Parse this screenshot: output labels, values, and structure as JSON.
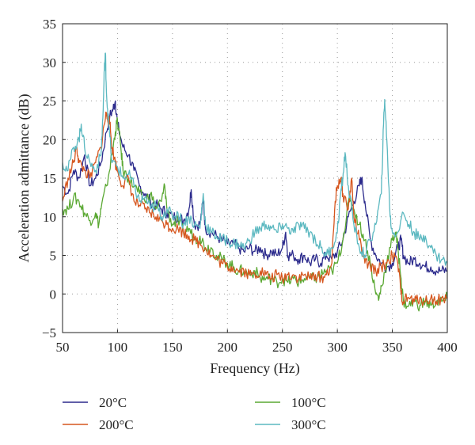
{
  "chart_data": {
    "type": "line",
    "title": "",
    "xlabel": "Frequency (Hz)",
    "ylabel": "Acceleration admittance (dB)",
    "xlim": [
      50,
      400
    ],
    "ylim": [
      -5,
      35
    ],
    "xticks": [
      50,
      100,
      150,
      200,
      250,
      300,
      350,
      400
    ],
    "yticks": [
      -5,
      0,
      5,
      10,
      15,
      20,
      25,
      30,
      35
    ],
    "xtick_labels": [
      "50",
      "100",
      "150",
      "200",
      "250",
      "300",
      "350",
      "400"
    ],
    "ytick_labels": [
      "−5",
      "0",
      "5",
      "10",
      "15",
      "20",
      "25",
      "30",
      "35"
    ],
    "grid": true,
    "legend_position": "bottom",
    "series": [
      {
        "name": "20°C",
        "color": "#2b2a8c",
        "points": [
          [
            50,
            14
          ],
          [
            55,
            13
          ],
          [
            60,
            16
          ],
          [
            65,
            15
          ],
          [
            70,
            18
          ],
          [
            75,
            14
          ],
          [
            80,
            15
          ],
          [
            85,
            17
          ],
          [
            90,
            21
          ],
          [
            93,
            23
          ],
          [
            96,
            24
          ],
          [
            98,
            25
          ],
          [
            100,
            22
          ],
          [
            105,
            19
          ],
          [
            110,
            18
          ],
          [
            115,
            16
          ],
          [
            120,
            14
          ],
          [
            125,
            13
          ],
          [
            130,
            12
          ],
          [
            135,
            11.5
          ],
          [
            140,
            11
          ],
          [
            145,
            10.5
          ],
          [
            150,
            10
          ],
          [
            155,
            10
          ],
          [
            160,
            9.5
          ],
          [
            165,
            11
          ],
          [
            167,
            13.5
          ],
          [
            170,
            9
          ],
          [
            175,
            9
          ],
          [
            178,
            12
          ],
          [
            180,
            8.5
          ],
          [
            185,
            8
          ],
          [
            190,
            7.5
          ],
          [
            195,
            7
          ],
          [
            200,
            6.5
          ],
          [
            205,
            6.5
          ],
          [
            210,
            6
          ],
          [
            215,
            5.5
          ],
          [
            220,
            6
          ],
          [
            225,
            5.5
          ],
          [
            230,
            6
          ],
          [
            235,
            5
          ],
          [
            240,
            5.5
          ],
          [
            245,
            5
          ],
          [
            250,
            6
          ],
          [
            253,
            8
          ],
          [
            255,
            5
          ],
          [
            260,
            5
          ],
          [
            265,
            4.5
          ],
          [
            270,
            5
          ],
          [
            275,
            4
          ],
          [
            280,
            4.5
          ],
          [
            285,
            4
          ],
          [
            290,
            5
          ],
          [
            295,
            4.5
          ],
          [
            300,
            5.5
          ],
          [
            305,
            7
          ],
          [
            310,
            10
          ],
          [
            315,
            12
          ],
          [
            320,
            14
          ],
          [
            322,
            15
          ],
          [
            325,
            12
          ],
          [
            330,
            7
          ],
          [
            335,
            5
          ],
          [
            340,
            4
          ],
          [
            345,
            3.5
          ],
          [
            350,
            4
          ],
          [
            355,
            6
          ],
          [
            358,
            7
          ],
          [
            360,
            5
          ],
          [
            365,
            4
          ],
          [
            370,
            4.5
          ],
          [
            375,
            4
          ],
          [
            380,
            3.5
          ],
          [
            385,
            3.5
          ],
          [
            390,
            3
          ],
          [
            395,
            3
          ],
          [
            400,
            3
          ]
        ]
      },
      {
        "name": "100°C",
        "color": "#5aa832",
        "points": [
          [
            50,
            11
          ],
          [
            55,
            11
          ],
          [
            60,
            12.5
          ],
          [
            65,
            12
          ],
          [
            70,
            10.5
          ],
          [
            75,
            9.5
          ],
          [
            80,
            10.5
          ],
          [
            83,
            9
          ],
          [
            85,
            11
          ],
          [
            90,
            14
          ],
          [
            95,
            18
          ],
          [
            98,
            21
          ],
          [
            100,
            22.5
          ],
          [
            103,
            19
          ],
          [
            105,
            16
          ],
          [
            110,
            15
          ],
          [
            115,
            14
          ],
          [
            120,
            13
          ],
          [
            125,
            12
          ],
          [
            130,
            13
          ],
          [
            135,
            11
          ],
          [
            140,
            12
          ],
          [
            143,
            14
          ],
          [
            145,
            11
          ],
          [
            150,
            9
          ],
          [
            155,
            9.5
          ],
          [
            160,
            8
          ],
          [
            165,
            8.5
          ],
          [
            170,
            7
          ],
          [
            175,
            7.5
          ],
          [
            180,
            6
          ],
          [
            185,
            6
          ],
          [
            190,
            5
          ],
          [
            195,
            4.5
          ],
          [
            200,
            4
          ],
          [
            205,
            3.5
          ],
          [
            210,
            3
          ],
          [
            215,
            3
          ],
          [
            220,
            2.5
          ],
          [
            225,
            3
          ],
          [
            230,
            2
          ],
          [
            235,
            2
          ],
          [
            240,
            2
          ],
          [
            245,
            1.5
          ],
          [
            250,
            2
          ],
          [
            255,
            1.5
          ],
          [
            260,
            2
          ],
          [
            265,
            1.5
          ],
          [
            270,
            2
          ],
          [
            275,
            2
          ],
          [
            280,
            2
          ],
          [
            285,
            2.5
          ],
          [
            290,
            3
          ],
          [
            295,
            3
          ],
          [
            300,
            4
          ],
          [
            305,
            7
          ],
          [
            310,
            12
          ],
          [
            315,
            11
          ],
          [
            320,
            9
          ],
          [
            325,
            7
          ],
          [
            330,
            4
          ],
          [
            335,
            0
          ],
          [
            338,
            -0.5
          ],
          [
            340,
            1
          ],
          [
            345,
            4
          ],
          [
            350,
            7
          ],
          [
            353,
            8
          ],
          [
            355,
            6
          ],
          [
            358,
            2
          ],
          [
            360,
            -1
          ],
          [
            365,
            -1.5
          ],
          [
            370,
            -1
          ],
          [
            375,
            -1.5
          ],
          [
            380,
            -1
          ],
          [
            385,
            -1.5
          ],
          [
            390,
            -1
          ],
          [
            395,
            -1
          ],
          [
            400,
            -0.5
          ]
        ]
      },
      {
        "name": "200°C",
        "color": "#d6561e",
        "points": [
          [
            50,
            12
          ],
          [
            55,
            15
          ],
          [
            60,
            17
          ],
          [
            63,
            19
          ],
          [
            65,
            17
          ],
          [
            70,
            16
          ],
          [
            75,
            15
          ],
          [
            80,
            17
          ],
          [
            85,
            19
          ],
          [
            88,
            22
          ],
          [
            90,
            23.5
          ],
          [
            93,
            22
          ],
          [
            95,
            19
          ],
          [
            98,
            17
          ],
          [
            100,
            16
          ],
          [
            105,
            14
          ],
          [
            110,
            15
          ],
          [
            115,
            12
          ],
          [
            120,
            11.5
          ],
          [
            125,
            11
          ],
          [
            130,
            10.5
          ],
          [
            135,
            10
          ],
          [
            140,
            9.5
          ],
          [
            145,
            9
          ],
          [
            150,
            8.5
          ],
          [
            155,
            8.5
          ],
          [
            160,
            8
          ],
          [
            165,
            7.5
          ],
          [
            170,
            7
          ],
          [
            175,
            6.5
          ],
          [
            180,
            6
          ],
          [
            185,
            5
          ],
          [
            190,
            4.5
          ],
          [
            195,
            4
          ],
          [
            200,
            3.5
          ],
          [
            205,
            3.5
          ],
          [
            210,
            3
          ],
          [
            215,
            3
          ],
          [
            220,
            2.5
          ],
          [
            225,
            2.5
          ],
          [
            230,
            3
          ],
          [
            235,
            2.5
          ],
          [
            240,
            2
          ],
          [
            245,
            2.5
          ],
          [
            250,
            2
          ],
          [
            255,
            2.5
          ],
          [
            260,
            2.5
          ],
          [
            265,
            2
          ],
          [
            270,
            2.5
          ],
          [
            275,
            2
          ],
          [
            280,
            2.5
          ],
          [
            285,
            2
          ],
          [
            290,
            2.5
          ],
          [
            295,
            4
          ],
          [
            298,
            12
          ],
          [
            300,
            14
          ],
          [
            303,
            15
          ],
          [
            305,
            13
          ],
          [
            310,
            11
          ],
          [
            313,
            15
          ],
          [
            315,
            10
          ],
          [
            320,
            7
          ],
          [
            325,
            4
          ],
          [
            330,
            3.5
          ],
          [
            335,
            3
          ],
          [
            340,
            3.5
          ],
          [
            345,
            4
          ],
          [
            350,
            5
          ],
          [
            355,
            4
          ],
          [
            358,
            0
          ],
          [
            360,
            -1
          ],
          [
            365,
            -0.5
          ],
          [
            370,
            -1
          ],
          [
            375,
            -0.5
          ],
          [
            380,
            -1
          ],
          [
            385,
            -0.5
          ],
          [
            390,
            -1
          ],
          [
            395,
            -0.5
          ],
          [
            400,
            -0.5
          ]
        ]
      },
      {
        "name": "300°C",
        "color": "#5bb8c0",
        "points": [
          [
            50,
            17
          ],
          [
            55,
            16
          ],
          [
            60,
            19
          ],
          [
            65,
            20
          ],
          [
            67,
            22
          ],
          [
            70,
            19
          ],
          [
            75,
            17
          ],
          [
            80,
            16
          ],
          [
            85,
            18
          ],
          [
            87,
            24
          ],
          [
            88,
            29
          ],
          [
            89,
            31.2
          ],
          [
            90,
            26
          ],
          [
            92,
            22
          ],
          [
            95,
            17
          ],
          [
            100,
            16.5
          ],
          [
            105,
            15
          ],
          [
            110,
            15.5
          ],
          [
            115,
            14
          ],
          [
            120,
            12
          ],
          [
            125,
            12.5
          ],
          [
            130,
            11
          ],
          [
            135,
            11.5
          ],
          [
            140,
            10
          ],
          [
            145,
            11
          ],
          [
            150,
            10
          ],
          [
            155,
            10.5
          ],
          [
            160,
            9
          ],
          [
            165,
            10
          ],
          [
            170,
            9
          ],
          [
            175,
            8.5
          ],
          [
            178,
            13
          ],
          [
            180,
            9
          ],
          [
            185,
            8
          ],
          [
            190,
            7.5
          ],
          [
            195,
            7
          ],
          [
            200,
            7
          ],
          [
            205,
            6.5
          ],
          [
            210,
            6.5
          ],
          [
            215,
            6
          ],
          [
            220,
            7
          ],
          [
            225,
            8
          ],
          [
            230,
            8.5
          ],
          [
            235,
            9
          ],
          [
            240,
            8.5
          ],
          [
            245,
            8
          ],
          [
            250,
            9
          ],
          [
            255,
            8.5
          ],
          [
            260,
            8
          ],
          [
            265,
            9
          ],
          [
            270,
            8.5
          ],
          [
            275,
            8
          ],
          [
            280,
            7
          ],
          [
            285,
            6
          ],
          [
            290,
            5
          ],
          [
            295,
            6
          ],
          [
            300,
            8
          ],
          [
            303,
            13
          ],
          [
            305,
            15
          ],
          [
            307,
            18.3
          ],
          [
            310,
            14
          ],
          [
            315,
            9
          ],
          [
            320,
            6
          ],
          [
            325,
            5
          ],
          [
            330,
            7
          ],
          [
            335,
            9
          ],
          [
            340,
            13
          ],
          [
            342,
            22
          ],
          [
            343,
            25.2
          ],
          [
            345,
            20
          ],
          [
            348,
            10
          ],
          [
            350,
            8
          ],
          [
            355,
            8
          ],
          [
            360,
            10.5
          ],
          [
            365,
            9
          ],
          [
            370,
            8
          ],
          [
            375,
            7
          ],
          [
            380,
            7.5
          ],
          [
            385,
            6
          ],
          [
            390,
            5
          ],
          [
            395,
            4.5
          ],
          [
            400,
            4
          ]
        ]
      }
    ]
  }
}
